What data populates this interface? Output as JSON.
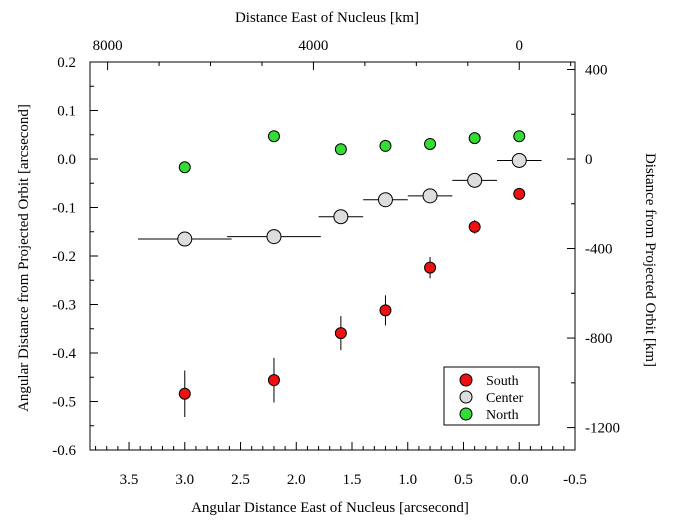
{
  "chart_data": {
    "type": "scatter",
    "xlabel": "Angular Distance East of Nucleus [arcsecond]",
    "ylabel": "Angular Distance from Projected Orbit [arcsecond]",
    "top_xlabel": "Distance East of Nucleus [km]",
    "right_ylabel": "Distance from Projected Orbit [km]",
    "xlim": [
      3.85,
      -0.5
    ],
    "ylim": [
      -0.6,
      0.2
    ],
    "x_ticks": [
      {
        "v": 3.5,
        "label": "3.5"
      },
      {
        "v": 3.0,
        "label": "3.0"
      },
      {
        "v": 2.5,
        "label": "2.5"
      },
      {
        "v": 2.0,
        "label": "2.0"
      },
      {
        "v": 1.5,
        "label": "1.5"
      },
      {
        "v": 1.0,
        "label": "1.0"
      },
      {
        "v": 0.5,
        "label": "0.5"
      },
      {
        "v": 0.0,
        "label": "0.0"
      },
      {
        "v": -0.5,
        "label": "-0.5"
      }
    ],
    "y_ticks": [
      {
        "v": 0.2,
        "label": "0.2"
      },
      {
        "v": 0.1,
        "label": "0.1"
      },
      {
        "v": 0.0,
        "label": "0.0"
      },
      {
        "v": -0.1,
        "label": "-0.1"
      },
      {
        "v": -0.2,
        "label": "-0.2"
      },
      {
        "v": -0.3,
        "label": "-0.3"
      },
      {
        "v": -0.4,
        "label": "-0.4"
      },
      {
        "v": -0.5,
        "label": "-0.5"
      },
      {
        "v": -0.6,
        "label": "-0.6"
      }
    ],
    "top_ticks": [
      {
        "arcsec": 3.692,
        "label": "8000"
      },
      {
        "arcsec": 1.846,
        "label": "4000"
      },
      {
        "arcsec": 0.0,
        "label": "0"
      }
    ],
    "right_ticks": [
      {
        "arcsec": 0.1846,
        "label": "400"
      },
      {
        "arcsec": 0.0,
        "label": "0"
      },
      {
        "arcsec": -0.1846,
        "label": "-400"
      },
      {
        "arcsec": -0.3692,
        "label": "-800"
      },
      {
        "arcsec": -0.5538,
        "label": "-1200"
      }
    ],
    "series": [
      {
        "name": "South",
        "color": "#ee1111",
        "points": [
          {
            "x": 3.0,
            "y": -0.484,
            "yerr": 0.048
          },
          {
            "x": 2.2,
            "y": -0.456,
            "yerr": 0.046
          },
          {
            "x": 1.6,
            "y": -0.359,
            "yerr": 0.035
          },
          {
            "x": 1.2,
            "y": -0.312,
            "yerr": 0.031
          },
          {
            "x": 0.8,
            "y": -0.224,
            "yerr": 0.022
          },
          {
            "x": 0.4,
            "y": -0.14,
            "yerr": 0.014
          },
          {
            "x": 0.0,
            "y": -0.072,
            "yerr": 0.0
          }
        ]
      },
      {
        "name": "Center",
        "color": "#dddddd",
        "points": [
          {
            "x": 3.0,
            "y": -0.165,
            "xerr": 0.42
          },
          {
            "x": 2.2,
            "y": -0.16,
            "xerr": 0.42
          },
          {
            "x": 1.6,
            "y": -0.119,
            "xerr": 0.2
          },
          {
            "x": 1.2,
            "y": -0.084,
            "xerr": 0.2
          },
          {
            "x": 0.8,
            "y": -0.076,
            "xerr": 0.2
          },
          {
            "x": 0.4,
            "y": -0.044,
            "xerr": 0.2
          },
          {
            "x": 0.0,
            "y": -0.003,
            "xerr": 0.2
          }
        ]
      },
      {
        "name": "North",
        "color": "#33dd33",
        "points": [
          {
            "x": 3.0,
            "y": -0.017
          },
          {
            "x": 2.2,
            "y": 0.047
          },
          {
            "x": 1.6,
            "y": 0.02
          },
          {
            "x": 1.2,
            "y": 0.027
          },
          {
            "x": 0.8,
            "y": 0.031
          },
          {
            "x": 0.4,
            "y": 0.043
          },
          {
            "x": 0.0,
            "y": 0.047
          }
        ]
      }
    ],
    "legend_position": "bottom-right"
  }
}
